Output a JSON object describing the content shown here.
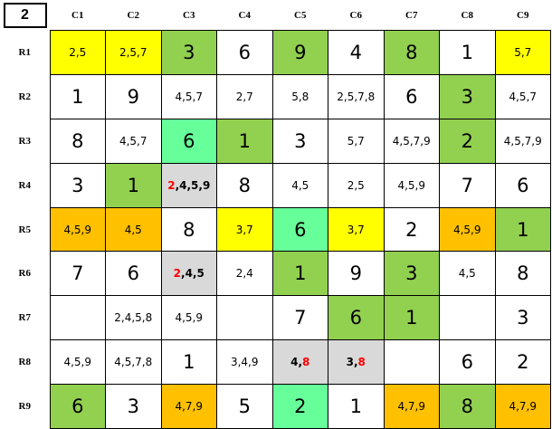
{
  "corner": "2",
  "columns": [
    "C1",
    "C2",
    "C3",
    "C4",
    "C5",
    "C6",
    "C7",
    "C8",
    "C9"
  ],
  "rows": [
    {
      "label": "R1",
      "cells": [
        {
          "text": "2,5",
          "fill": "#ffff00"
        },
        {
          "text": "2,5,7",
          "fill": "#ffff00"
        },
        {
          "text": "3",
          "fill": "#92d050"
        },
        {
          "text": "6"
        },
        {
          "text": "9",
          "fill": "#92d050"
        },
        {
          "text": "4"
        },
        {
          "text": "8",
          "fill": "#92d050"
        },
        {
          "text": "1"
        },
        {
          "text": "5,7",
          "fill": "#ffff00"
        }
      ]
    },
    {
      "label": "R2",
      "cells": [
        {
          "text": "1"
        },
        {
          "text": "9"
        },
        {
          "text": "4,5,7"
        },
        {
          "text": "2,7"
        },
        {
          "text": "5,8"
        },
        {
          "text": "2,5,7,8"
        },
        {
          "text": "6"
        },
        {
          "text": "3",
          "fill": "#92d050"
        },
        {
          "text": "4,5,7"
        }
      ]
    },
    {
      "label": "R3",
      "cells": [
        {
          "text": "8"
        },
        {
          "text": "4,5,7"
        },
        {
          "text": "6",
          "fill": "#66ff99"
        },
        {
          "text": "1",
          "fill": "#92d050"
        },
        {
          "text": "3"
        },
        {
          "text": "5,7"
        },
        {
          "text": "4,5,7,9"
        },
        {
          "text": "2",
          "fill": "#92d050"
        },
        {
          "text": "4,5,7,9"
        }
      ]
    },
    {
      "label": "R4",
      "cells": [
        {
          "text": "3"
        },
        {
          "text": "1",
          "fill": "#92d050"
        },
        {
          "parts": [
            "2",
            ",4,5,9"
          ],
          "red": [
            0
          ],
          "fill": "#d9d9d9"
        },
        {
          "text": "8"
        },
        {
          "text": "4,5"
        },
        {
          "text": "2,5"
        },
        {
          "text": "4,5,9"
        },
        {
          "text": "7"
        },
        {
          "text": "6"
        }
      ]
    },
    {
      "label": "R5",
      "cells": [
        {
          "text": "4,5,9",
          "fill": "#ffc000"
        },
        {
          "text": "4,5",
          "fill": "#ffc000"
        },
        {
          "text": "8"
        },
        {
          "text": "3,7",
          "fill": "#ffff00"
        },
        {
          "text": "6",
          "fill": "#66ff99"
        },
        {
          "text": "3,7",
          "fill": "#ffff00"
        },
        {
          "text": "2"
        },
        {
          "text": "4,5,9",
          "fill": "#ffc000"
        },
        {
          "text": "1",
          "fill": "#92d050"
        }
      ]
    },
    {
      "label": "R6",
      "cells": [
        {
          "text": "7"
        },
        {
          "text": "6"
        },
        {
          "parts": [
            "2",
            ",4,5"
          ],
          "red": [
            0
          ],
          "fill": "#d9d9d9"
        },
        {
          "text": "2,4"
        },
        {
          "text": "1",
          "fill": "#92d050"
        },
        {
          "text": "9"
        },
        {
          "text": "3",
          "fill": "#92d050"
        },
        {
          "text": "4,5"
        },
        {
          "text": "8"
        }
      ]
    },
    {
      "label": "R7",
      "cells": [
        {},
        {
          "text": "2,4,5,8"
        },
        {
          "text": "4,5,9"
        },
        {},
        {
          "text": "7"
        },
        {
          "text": "6",
          "fill": "#92d050"
        },
        {
          "text": "1",
          "fill": "#92d050"
        },
        {},
        {
          "text": "3"
        }
      ]
    },
    {
      "label": "R8",
      "cells": [
        {
          "text": "4,5,9"
        },
        {
          "text": "4,5,7,8"
        },
        {
          "text": "1"
        },
        {
          "text": "3,4,9"
        },
        {
          "parts": [
            "4,",
            "8"
          ],
          "red": [
            1
          ],
          "fill": "#d9d9d9"
        },
        {
          "parts": [
            "3,",
            "8"
          ],
          "red": [
            1
          ],
          "fill": "#d9d9d9"
        },
        {},
        {
          "text": "6"
        },
        {
          "text": "2"
        }
      ]
    },
    {
      "label": "R9",
      "cells": [
        {
          "text": "6",
          "fill": "#92d050"
        },
        {
          "text": "3"
        },
        {
          "text": "4,7,9",
          "fill": "#ffc000"
        },
        {
          "text": "5"
        },
        {
          "text": "2",
          "fill": "#66ff99"
        },
        {
          "text": "1"
        },
        {
          "text": "4,7,9",
          "fill": "#ffc000"
        },
        {
          "text": "8",
          "fill": "#92d050"
        },
        {
          "text": "4,7,9",
          "fill": "#ffc000"
        }
      ]
    }
  ]
}
